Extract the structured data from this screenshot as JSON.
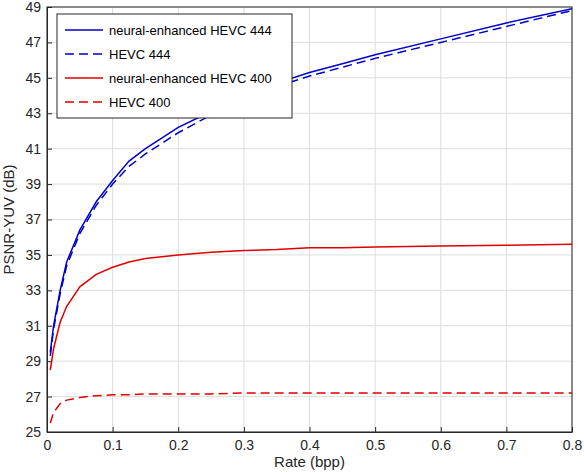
{
  "chart_data": {
    "type": "line",
    "x_label": "Rate (bpp)",
    "y_label": "PSNR-YUV (dB)",
    "x": [
      0.005,
      0.01,
      0.02,
      0.03,
      0.05,
      0.075,
      0.1,
      0.125,
      0.15,
      0.2,
      0.25,
      0.3,
      0.35,
      0.4,
      0.45,
      0.5,
      0.6,
      0.7,
      0.8
    ],
    "series": [
      {
        "name": "neural-enhanced HEVC 444",
        "color": "#0000cc",
        "line_style": "solid",
        "values": [
          29.5,
          31.0,
          33.0,
          34.6,
          36.4,
          38.0,
          39.2,
          40.3,
          41.0,
          42.2,
          43.1,
          44.0,
          44.7,
          45.3,
          45.8,
          46.3,
          47.2,
          48.1,
          48.9
        ]
      },
      {
        "name": "HEVC 444",
        "color": "#0000cc",
        "line_style": "dashed",
        "values": [
          29.3,
          30.8,
          32.8,
          34.4,
          36.2,
          37.8,
          39.0,
          40.0,
          40.7,
          41.9,
          42.9,
          43.8,
          44.5,
          45.1,
          45.6,
          46.1,
          47.0,
          47.9,
          48.8
        ]
      },
      {
        "name": "neural-enhanced HEVC 400",
        "color": "#e00000",
        "line_style": "solid",
        "values": [
          28.5,
          29.7,
          31.2,
          32.1,
          33.2,
          33.9,
          34.3,
          34.6,
          34.8,
          35.0,
          35.15,
          35.25,
          35.3,
          35.4,
          35.4,
          35.45,
          35.5,
          35.55,
          35.6
        ]
      },
      {
        "name": "HEVC 400",
        "color": "#e00000",
        "line_style": "dashed",
        "values": [
          25.5,
          26.1,
          26.6,
          26.8,
          26.95,
          27.05,
          27.1,
          27.1,
          27.15,
          27.15,
          27.15,
          27.2,
          27.2,
          27.2,
          27.2,
          27.2,
          27.2,
          27.2,
          27.2
        ]
      }
    ],
    "xlim": [
      0,
      0.8
    ],
    "ylim": [
      25,
      49
    ],
    "xticks": [
      0,
      0.1,
      0.2,
      0.3,
      0.4,
      0.5,
      0.6,
      0.7,
      0.8
    ],
    "yticks": [
      25,
      27,
      29,
      31,
      33,
      35,
      37,
      39,
      41,
      43,
      45,
      47,
      49
    ],
    "grid": true,
    "legend": "northwest"
  }
}
